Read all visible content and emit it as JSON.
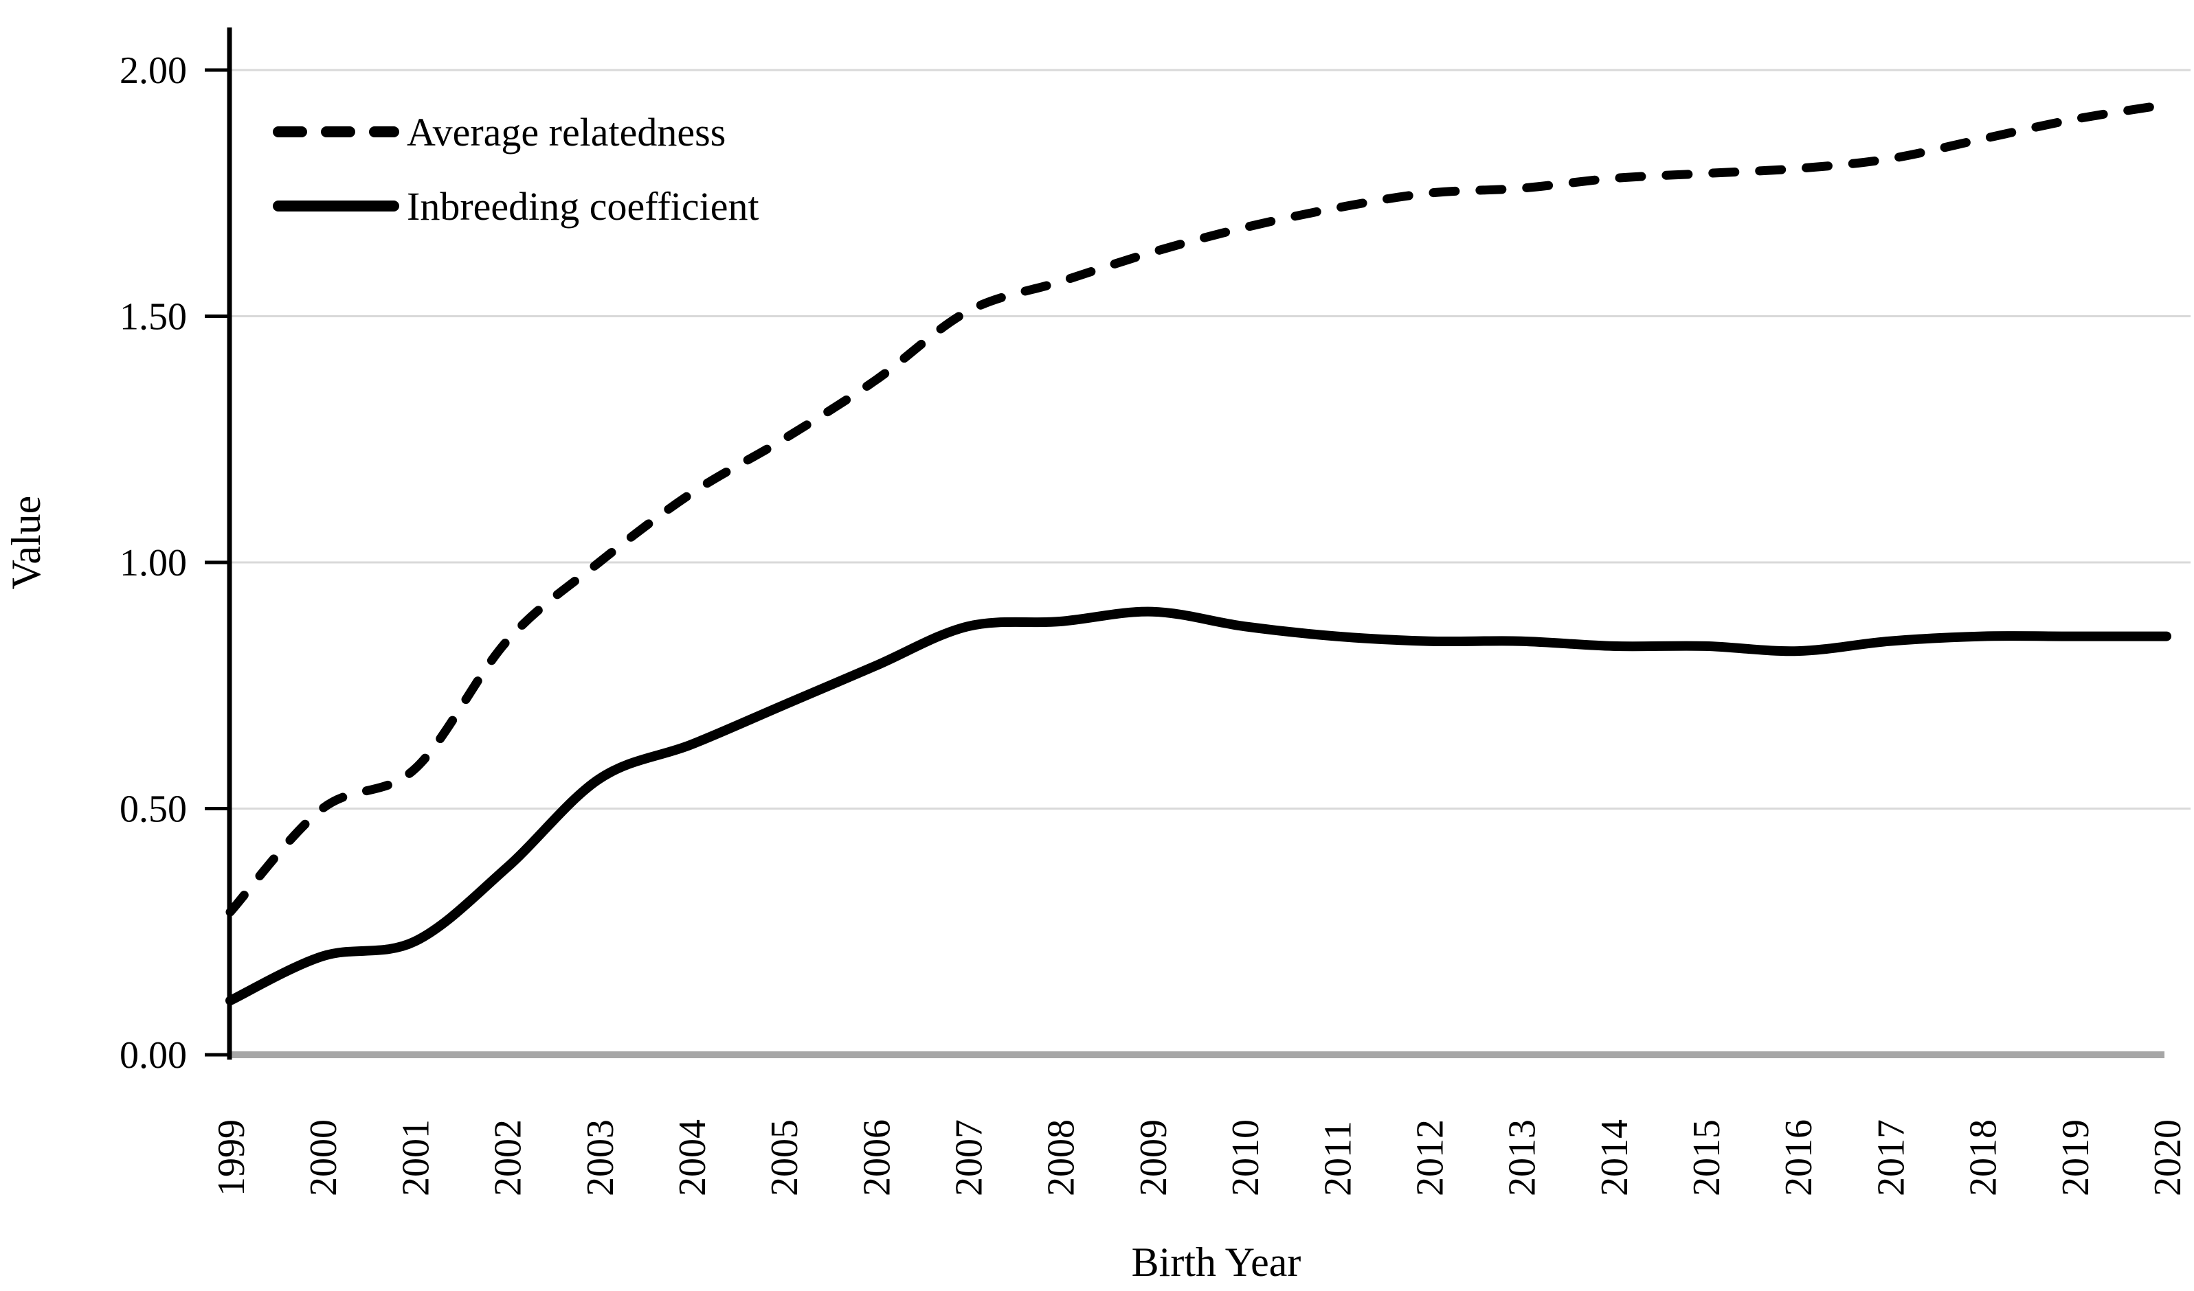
{
  "figure": {
    "background": "#ffffff"
  },
  "chart_data": {
    "type": "line",
    "title": "",
    "xlabel": "Birth Year",
    "ylabel": "Value",
    "x": [
      "1999",
      "2000",
      "2001",
      "2002",
      "2003",
      "2004",
      "2005",
      "2006",
      "2007",
      "2008",
      "2009",
      "2010",
      "2011",
      "2012",
      "2013",
      "2014",
      "2015",
      "2016",
      "2017",
      "2018",
      "2019",
      "2020"
    ],
    "series": [
      {
        "name": "Average relatedness",
        "style": "dashed",
        "color": "#000000",
        "values": [
          0.29,
          0.5,
          0.58,
          0.84,
          1.0,
          1.14,
          1.25,
          1.37,
          1.51,
          1.57,
          1.63,
          1.68,
          1.72,
          1.75,
          1.76,
          1.78,
          1.79,
          1.8,
          1.82,
          1.86,
          1.9,
          1.93
        ]
      },
      {
        "name": "Inbreeding coefficient",
        "style": "solid",
        "color": "#000000",
        "values": [
          0.11,
          0.2,
          0.23,
          0.38,
          0.56,
          0.63,
          0.71,
          0.79,
          0.87,
          0.88,
          0.9,
          0.87,
          0.85,
          0.84,
          0.84,
          0.83,
          0.83,
          0.82,
          0.84,
          0.85,
          0.85,
          0.85
        ]
      }
    ],
    "ylim": [
      0,
      2
    ],
    "yticks": [
      {
        "value": 0.0,
        "label": "0.00"
      },
      {
        "value": 0.5,
        "label": "0.50"
      },
      {
        "value": 1.0,
        "label": "1.00"
      },
      {
        "value": 1.5,
        "label": "1.50"
      },
      {
        "value": 2.0,
        "label": "2.00"
      }
    ],
    "grid": true,
    "legend_position": "top-left",
    "colors": {
      "gridline": "#d9d9d9",
      "baseline": "#a6a6a6",
      "axis": "#000000",
      "text": "#000000"
    }
  }
}
